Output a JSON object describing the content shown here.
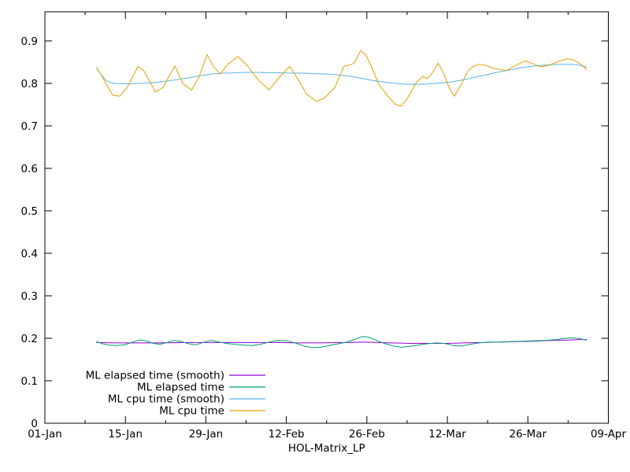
{
  "chart_data": {
    "type": "line",
    "title": "",
    "xlabel": "HOL-Matrix_LP",
    "ylabel": "",
    "grid": false,
    "background_color": "#ffffff",
    "border_color": "#000000",
    "x_axis": {
      "unit": "date (days since 01-Jan)",
      "range_days": [
        0,
        98
      ],
      "tick_days": [
        0,
        14,
        28,
        42,
        56,
        70,
        84,
        98
      ],
      "tick_labels": [
        "01-Jan",
        "15-Jan",
        "29-Jan",
        "12-Feb",
        "26-Feb",
        "12-Mar",
        "26-Mar",
        "09-Apr"
      ],
      "minor_tick_days": [
        7,
        21,
        35,
        49,
        63,
        77,
        91
      ]
    },
    "y_axis": {
      "range": [
        0,
        0.9685
      ],
      "ticks": [
        0,
        0.1,
        0.2,
        0.3,
        0.4,
        0.5,
        0.6,
        0.7,
        0.8,
        0.9
      ],
      "tick_labels": [
        "0",
        "0.1",
        "0.2",
        "0.3",
        "0.4",
        "0.5",
        "0.6",
        "0.7",
        "0.8",
        "0.9"
      ]
    },
    "legend": {
      "position": "inside-bottom-left",
      "entries": [
        "ML elapsed time (smooth)",
        "ML elapsed time",
        "ML cpu time (smooth)",
        "ML cpu time"
      ]
    },
    "series": [
      {
        "id": "ml-elapsed-smooth",
        "name": "ML elapsed time (smooth)",
        "color": "#9400D3",
        "points": [
          [
            9.0,
            0.19
          ],
          [
            12.0,
            0.189
          ],
          [
            16.0,
            0.189
          ],
          [
            20.0,
            0.189
          ],
          [
            24.0,
            0.19
          ],
          [
            28.0,
            0.19
          ],
          [
            32.0,
            0.19
          ],
          [
            36.0,
            0.19
          ],
          [
            40.0,
            0.19
          ],
          [
            44.0,
            0.189
          ],
          [
            48.0,
            0.189
          ],
          [
            52.0,
            0.19
          ],
          [
            56.0,
            0.191
          ],
          [
            60.0,
            0.189
          ],
          [
            64.0,
            0.188
          ],
          [
            68.0,
            0.188
          ],
          [
            70.0,
            0.188
          ],
          [
            73.0,
            0.189
          ],
          [
            76.0,
            0.19
          ],
          [
            79.0,
            0.191
          ],
          [
            82.0,
            0.192
          ],
          [
            85.0,
            0.193
          ],
          [
            88.0,
            0.195
          ],
          [
            91.0,
            0.196
          ],
          [
            93.0,
            0.197
          ],
          [
            94.2,
            0.197
          ]
        ]
      },
      {
        "id": "ml-elapsed",
        "name": "ML elapsed time",
        "color": "#009E73",
        "points": [
          [
            9.0,
            0.192
          ],
          [
            9.8,
            0.188
          ],
          [
            11.0,
            0.184
          ],
          [
            12.5,
            0.183
          ],
          [
            14.0,
            0.185
          ],
          [
            15.5,
            0.192
          ],
          [
            16.5,
            0.196
          ],
          [
            17.5,
            0.194
          ],
          [
            18.8,
            0.188
          ],
          [
            20.0,
            0.186
          ],
          [
            21.3,
            0.19
          ],
          [
            22.5,
            0.195
          ],
          [
            23.8,
            0.192
          ],
          [
            25.0,
            0.187
          ],
          [
            26.3,
            0.185
          ],
          [
            27.5,
            0.19
          ],
          [
            28.8,
            0.195
          ],
          [
            30.0,
            0.192
          ],
          [
            31.5,
            0.188
          ],
          [
            33.0,
            0.186
          ],
          [
            34.5,
            0.184
          ],
          [
            36.0,
            0.183
          ],
          [
            37.5,
            0.186
          ],
          [
            39.0,
            0.191
          ],
          [
            40.5,
            0.195
          ],
          [
            42.0,
            0.194
          ],
          [
            43.5,
            0.189
          ],
          [
            45.0,
            0.182
          ],
          [
            46.5,
            0.178
          ],
          [
            48.0,
            0.179
          ],
          [
            49.5,
            0.183
          ],
          [
            51.0,
            0.187
          ],
          [
            52.5,
            0.191
          ],
          [
            54.0,
            0.198
          ],
          [
            55.2,
            0.204
          ],
          [
            56.2,
            0.203
          ],
          [
            57.5,
            0.196
          ],
          [
            59.0,
            0.188
          ],
          [
            60.5,
            0.182
          ],
          [
            62.0,
            0.179
          ],
          [
            63.5,
            0.181
          ],
          [
            65.0,
            0.184
          ],
          [
            66.5,
            0.187
          ],
          [
            68.0,
            0.189
          ],
          [
            69.5,
            0.188
          ],
          [
            71.0,
            0.183
          ],
          [
            72.5,
            0.182
          ],
          [
            74.0,
            0.186
          ],
          [
            75.5,
            0.189
          ],
          [
            77.0,
            0.191
          ],
          [
            79.0,
            0.191
          ],
          [
            81.0,
            0.192
          ],
          [
            83.0,
            0.193
          ],
          [
            85.0,
            0.194
          ],
          [
            87.0,
            0.195
          ],
          [
            89.0,
            0.197
          ],
          [
            90.5,
            0.2
          ],
          [
            91.8,
            0.201
          ],
          [
            93.0,
            0.199
          ],
          [
            94.2,
            0.196
          ]
        ]
      },
      {
        "id": "ml-cpu-smooth",
        "name": "ML cpu time (smooth)",
        "color": "#56B4E9",
        "points": [
          [
            9.0,
            0.837
          ],
          [
            9.8,
            0.82
          ],
          [
            10.7,
            0.806
          ],
          [
            12.0,
            0.8
          ],
          [
            13.5,
            0.799
          ],
          [
            15.0,
            0.799
          ],
          [
            17.0,
            0.8
          ],
          [
            19.0,
            0.802
          ],
          [
            21.0,
            0.805
          ],
          [
            23.0,
            0.809
          ],
          [
            25.0,
            0.813
          ],
          [
            27.0,
            0.818
          ],
          [
            29.0,
            0.822
          ],
          [
            31.0,
            0.824
          ],
          [
            33.0,
            0.825
          ],
          [
            35.0,
            0.826
          ],
          [
            37.0,
            0.826
          ],
          [
            39.0,
            0.825
          ],
          [
            41.0,
            0.825
          ],
          [
            43.0,
            0.824
          ],
          [
            45.0,
            0.824
          ],
          [
            47.0,
            0.823
          ],
          [
            49.0,
            0.822
          ],
          [
            51.0,
            0.82
          ],
          [
            53.0,
            0.817
          ],
          [
            55.0,
            0.812
          ],
          [
            57.0,
            0.807
          ],
          [
            59.0,
            0.803
          ],
          [
            61.0,
            0.8
          ],
          [
            63.0,
            0.798
          ],
          [
            65.0,
            0.798
          ],
          [
            67.0,
            0.799
          ],
          [
            69.0,
            0.801
          ],
          [
            71.0,
            0.804
          ],
          [
            73.0,
            0.809
          ],
          [
            75.0,
            0.815
          ],
          [
            77.0,
            0.821
          ],
          [
            79.0,
            0.827
          ],
          [
            81.0,
            0.832
          ],
          [
            83.0,
            0.837
          ],
          [
            85.0,
            0.841
          ],
          [
            87.0,
            0.843
          ],
          [
            89.0,
            0.845
          ],
          [
            91.0,
            0.845
          ],
          [
            92.5,
            0.844
          ],
          [
            93.5,
            0.841
          ],
          [
            94.2,
            0.838
          ]
        ]
      },
      {
        "id": "ml-cpu",
        "name": "ML cpu time",
        "color": "#E69F00",
        "points": [
          [
            9.0,
            0.837
          ],
          [
            10.0,
            0.815
          ],
          [
            11.0,
            0.79
          ],
          [
            11.8,
            0.772
          ],
          [
            13.0,
            0.77
          ],
          [
            14.3,
            0.79
          ],
          [
            16.2,
            0.84
          ],
          [
            17.3,
            0.828
          ],
          [
            19.2,
            0.78
          ],
          [
            20.5,
            0.79
          ],
          [
            22.6,
            0.841
          ],
          [
            24.0,
            0.8
          ],
          [
            25.5,
            0.784
          ],
          [
            26.8,
            0.815
          ],
          [
            28.2,
            0.868
          ],
          [
            29.3,
            0.84
          ],
          [
            30.5,
            0.822
          ],
          [
            31.8,
            0.845
          ],
          [
            33.5,
            0.863
          ],
          [
            35.0,
            0.845
          ],
          [
            37.0,
            0.81
          ],
          [
            39.0,
            0.785
          ],
          [
            40.8,
            0.815
          ],
          [
            42.6,
            0.84
          ],
          [
            44.0,
            0.81
          ],
          [
            45.5,
            0.775
          ],
          [
            47.2,
            0.758
          ],
          [
            48.6,
            0.765
          ],
          [
            50.4,
            0.79
          ],
          [
            52.0,
            0.84
          ],
          [
            53.0,
            0.843
          ],
          [
            53.8,
            0.848
          ],
          [
            54.9,
            0.877
          ],
          [
            55.8,
            0.868
          ],
          [
            56.5,
            0.848
          ],
          [
            58.0,
            0.8
          ],
          [
            59.5,
            0.772
          ],
          [
            61.0,
            0.75
          ],
          [
            62.0,
            0.747
          ],
          [
            63.2,
            0.768
          ],
          [
            64.5,
            0.8
          ],
          [
            65.7,
            0.817
          ],
          [
            66.5,
            0.811
          ],
          [
            67.4,
            0.825
          ],
          [
            68.4,
            0.848
          ],
          [
            69.3,
            0.825
          ],
          [
            70.3,
            0.79
          ],
          [
            71.2,
            0.77
          ],
          [
            72.3,
            0.795
          ],
          [
            73.6,
            0.83
          ],
          [
            74.5,
            0.84
          ],
          [
            75.4,
            0.845
          ],
          [
            76.5,
            0.843
          ],
          [
            78.0,
            0.836
          ],
          [
            80.2,
            0.83
          ],
          [
            82.0,
            0.843
          ],
          [
            83.5,
            0.853
          ],
          [
            85.0,
            0.846
          ],
          [
            86.2,
            0.839
          ],
          [
            87.5,
            0.842
          ],
          [
            89.0,
            0.85
          ],
          [
            90.8,
            0.858
          ],
          [
            92.0,
            0.855
          ],
          [
            93.2,
            0.845
          ],
          [
            94.2,
            0.833
          ]
        ]
      }
    ]
  }
}
